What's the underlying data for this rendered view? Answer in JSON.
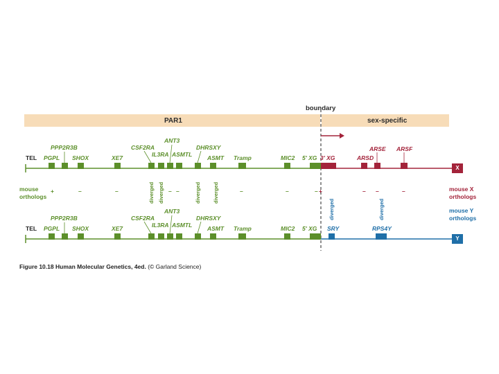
{
  "regions": {
    "par1": "PAR1",
    "sex_specific": "sex-specific",
    "boundary": "boundary"
  },
  "tel": "TEL",
  "x_row": {
    "upper_labels": [
      "PPP2R3B",
      "CSF2RA",
      "ANT3",
      "DHRSXY",
      "ARSE",
      "ARSF"
    ],
    "lower_labels": [
      "PGPL",
      "SHOX",
      "XE7",
      "IL3RA",
      "ASMTL",
      "ASMT",
      "Tramp",
      "MIC2",
      "5' XG",
      "3' XG",
      "ARSD"
    ],
    "chromosome": "X"
  },
  "y_row": {
    "upper_labels": [
      "PPP2R3B",
      "CSF2RA",
      "ANT3",
      "DHRSXY"
    ],
    "lower_labels": [
      "PGPL",
      "SHOX",
      "XE7",
      "IL3RA",
      "ASMTL",
      "ASMT",
      "Tramp",
      "MIC2",
      "5' XG",
      "SRY",
      "RPS4Y"
    ],
    "chromosome": "Y"
  },
  "mouse": {
    "left_label_line1": "mouse",
    "left_label_line2": "orthologs",
    "right_x_line1": "mouse X",
    "right_x_line2": "orthologs",
    "right_y_line1": "mouse Y",
    "right_y_line2": "orthologs",
    "symbols": [
      "+",
      "–",
      "–",
      "–",
      "–",
      "–",
      "–",
      "–",
      "+",
      "–",
      "–",
      "–"
    ],
    "diverged": [
      "diverged",
      "diverged",
      "diverged",
      "diverged",
      "diverged",
      "diverged"
    ]
  },
  "caption": {
    "figure": "Figure 10.18",
    "book": "Human Molecular Genetics, 4ed.",
    "credit": "(© Garland Science)"
  },
  "colors": {
    "green": "#5c8f2a",
    "red": "#a3233a",
    "blue": "#1f6fa8",
    "band": "#f7dcb8"
  }
}
